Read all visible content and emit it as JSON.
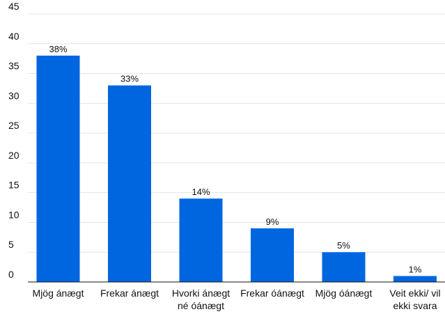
{
  "chart_data": {
    "type": "bar",
    "title": "",
    "xlabel": "",
    "ylabel": "",
    "ylim": [
      0,
      45
    ],
    "yticks": [
      0,
      5,
      10,
      15,
      20,
      25,
      30,
      35,
      40,
      45
    ],
    "grid": true,
    "legend": "none",
    "bar_color": "#0066e0",
    "categories": [
      [
        "Mjög ánægt"
      ],
      [
        "Frekar ánægt"
      ],
      [
        "Hvorki ánægt",
        "né óánægt"
      ],
      [
        "Frekar óánægt"
      ],
      [
        "Mjög óánægt"
      ],
      [
        "Veit ekki/ vil",
        "ekki svara"
      ]
    ],
    "values": [
      38,
      33,
      14,
      9,
      5,
      1
    ],
    "data_labels": [
      "38%",
      "33%",
      "14%",
      "9%",
      "5%",
      "1%"
    ]
  }
}
